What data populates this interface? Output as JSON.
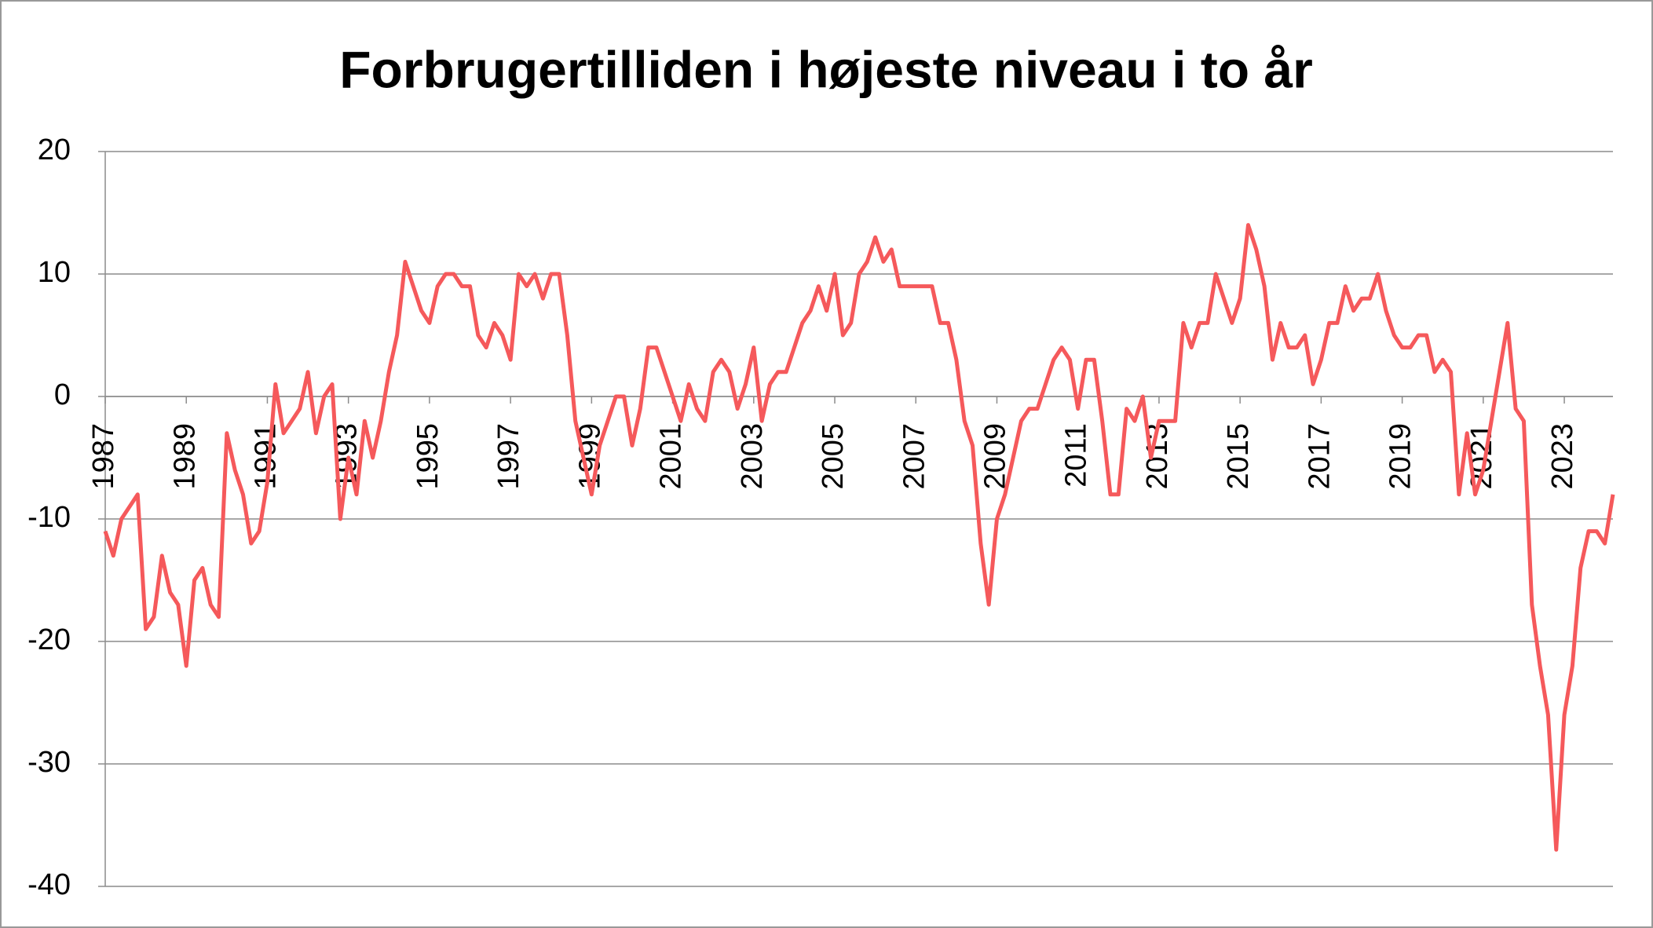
{
  "chart_data": {
    "type": "line",
    "title": "Forbrugertilliden i højeste niveau i to år",
    "x": [
      1987.0,
      1987.2,
      1987.4,
      1987.6,
      1987.8,
      1988.0,
      1988.2,
      1988.4,
      1988.6,
      1988.8,
      1989.0,
      1989.2,
      1989.4,
      1989.6,
      1989.8,
      1990.0,
      1990.2,
      1990.4,
      1990.6,
      1990.8,
      1991.0,
      1991.2,
      1991.4,
      1991.6,
      1991.8,
      1992.0,
      1992.2,
      1992.4,
      1992.6,
      1992.8,
      1993.0,
      1993.2,
      1993.4,
      1993.6,
      1993.8,
      1994.0,
      1994.2,
      1994.4,
      1994.6,
      1994.8,
      1995.0,
      1995.2,
      1995.4,
      1995.6,
      1995.8,
      1996.0,
      1996.2,
      1996.4,
      1996.6,
      1996.8,
      1997.0,
      1997.2,
      1997.4,
      1997.6,
      1997.8,
      1998.0,
      1998.2,
      1998.4,
      1998.6,
      1998.8,
      1999.0,
      1999.2,
      1999.4,
      1999.6,
      1999.8,
      2000.0,
      2000.2,
      2000.4,
      2000.6,
      2000.8,
      2001.0,
      2001.2,
      2001.4,
      2001.6,
      2001.8,
      2002.0,
      2002.2,
      2002.4,
      2002.6,
      2002.8,
      2003.0,
      2003.2,
      2003.4,
      2003.6,
      2003.8,
      2004.0,
      2004.2,
      2004.4,
      2004.6,
      2004.8,
      2005.0,
      2005.2,
      2005.4,
      2005.6,
      2005.8,
      2006.0,
      2006.2,
      2006.4,
      2006.6,
      2006.8,
      2007.0,
      2007.2,
      2007.4,
      2007.6,
      2007.8,
      2008.0,
      2008.2,
      2008.4,
      2008.6,
      2008.8,
      2009.0,
      2009.2,
      2009.4,
      2009.6,
      2009.8,
      2010.0,
      2010.2,
      2010.4,
      2010.6,
      2010.8,
      2011.0,
      2011.2,
      2011.4,
      2011.6,
      2011.8,
      2012.0,
      2012.2,
      2012.4,
      2012.6,
      2012.8,
      2013.0,
      2013.2,
      2013.4,
      2013.6,
      2013.8,
      2014.0,
      2014.2,
      2014.4,
      2014.6,
      2014.8,
      2015.0,
      2015.2,
      2015.4,
      2015.6,
      2015.8,
      2016.0,
      2016.2,
      2016.4,
      2016.6,
      2016.8,
      2017.0,
      2017.2,
      2017.4,
      2017.6,
      2017.8,
      2018.0,
      2018.2,
      2018.4,
      2018.6,
      2018.8,
      2019.0,
      2019.2,
      2019.4,
      2019.6,
      2019.8,
      2020.0,
      2020.2,
      2020.4,
      2020.6,
      2020.8,
      2021.0,
      2021.2,
      2021.4,
      2021.6,
      2021.8,
      2022.0,
      2022.2,
      2022.4,
      2022.6,
      2022.8,
      2023.0,
      2023.2,
      2023.4,
      2023.6,
      2023.8,
      2024.0,
      2024.2
    ],
    "series": [
      {
        "color": "#f5595b",
        "values": [
          -11,
          -13,
          -10,
          -9,
          -8,
          -19,
          -18,
          -13,
          -16,
          -17,
          -22,
          -15,
          -14,
          -17,
          -18,
          -3,
          -6,
          -8,
          -12,
          -11,
          -7,
          1,
          -3,
          -2,
          -1,
          2,
          -3,
          0,
          1,
          -10,
          -5,
          -8,
          -2,
          -5,
          -2,
          2,
          5,
          11,
          9,
          7,
          6,
          9,
          10,
          10,
          9,
          9,
          5,
          4,
          6,
          5,
          3,
          10,
          9,
          10,
          8,
          10,
          10,
          5,
          -2,
          -5,
          -8,
          -4,
          -2,
          0,
          0,
          -4,
          -1,
          4,
          4,
          2,
          0,
          -2,
          1,
          -1,
          -2,
          2,
          3,
          2,
          -1,
          1,
          4,
          -2,
          1,
          2,
          2,
          4,
          6,
          7,
          9,
          7,
          10,
          5,
          6,
          10,
          11,
          13,
          11,
          12,
          9,
          9,
          9,
          9,
          9,
          6,
          6,
          3,
          -2,
          -4,
          -12,
          -17,
          -10,
          -8,
          -5,
          -2,
          -1,
          -1,
          1,
          3,
          4,
          3,
          -1,
          3,
          3,
          -2,
          -8,
          -8,
          -1,
          -2,
          0,
          -5,
          -2,
          -2,
          -2,
          6,
          4,
          6,
          6,
          10,
          8,
          6,
          8,
          14,
          12,
          9,
          3,
          6,
          4,
          4,
          5,
          1,
          3,
          6,
          6,
          9,
          7,
          8,
          8,
          10,
          7,
          5,
          4,
          4,
          5,
          5,
          2,
          3,
          2,
          -8,
          -3,
          -8,
          -6,
          -2,
          2,
          6,
          -1,
          -2,
          -17,
          -22,
          -26,
          -37,
          -26,
          -22,
          -14,
          -11,
          -11,
          -12,
          -8
        ]
      }
    ],
    "xlim": [
      1987,
      2024.2
    ],
    "xticks": [
      1987,
      1989,
      1991,
      1993,
      1995,
      1997,
      1999,
      2001,
      2003,
      2005,
      2007,
      2009,
      2011,
      2013,
      2015,
      2017,
      2019,
      2021,
      2023
    ],
    "ylim": [
      -40,
      20
    ],
    "yticks": [
      -40,
      -30,
      -20,
      -10,
      0,
      10,
      20
    ],
    "grid": true
  }
}
